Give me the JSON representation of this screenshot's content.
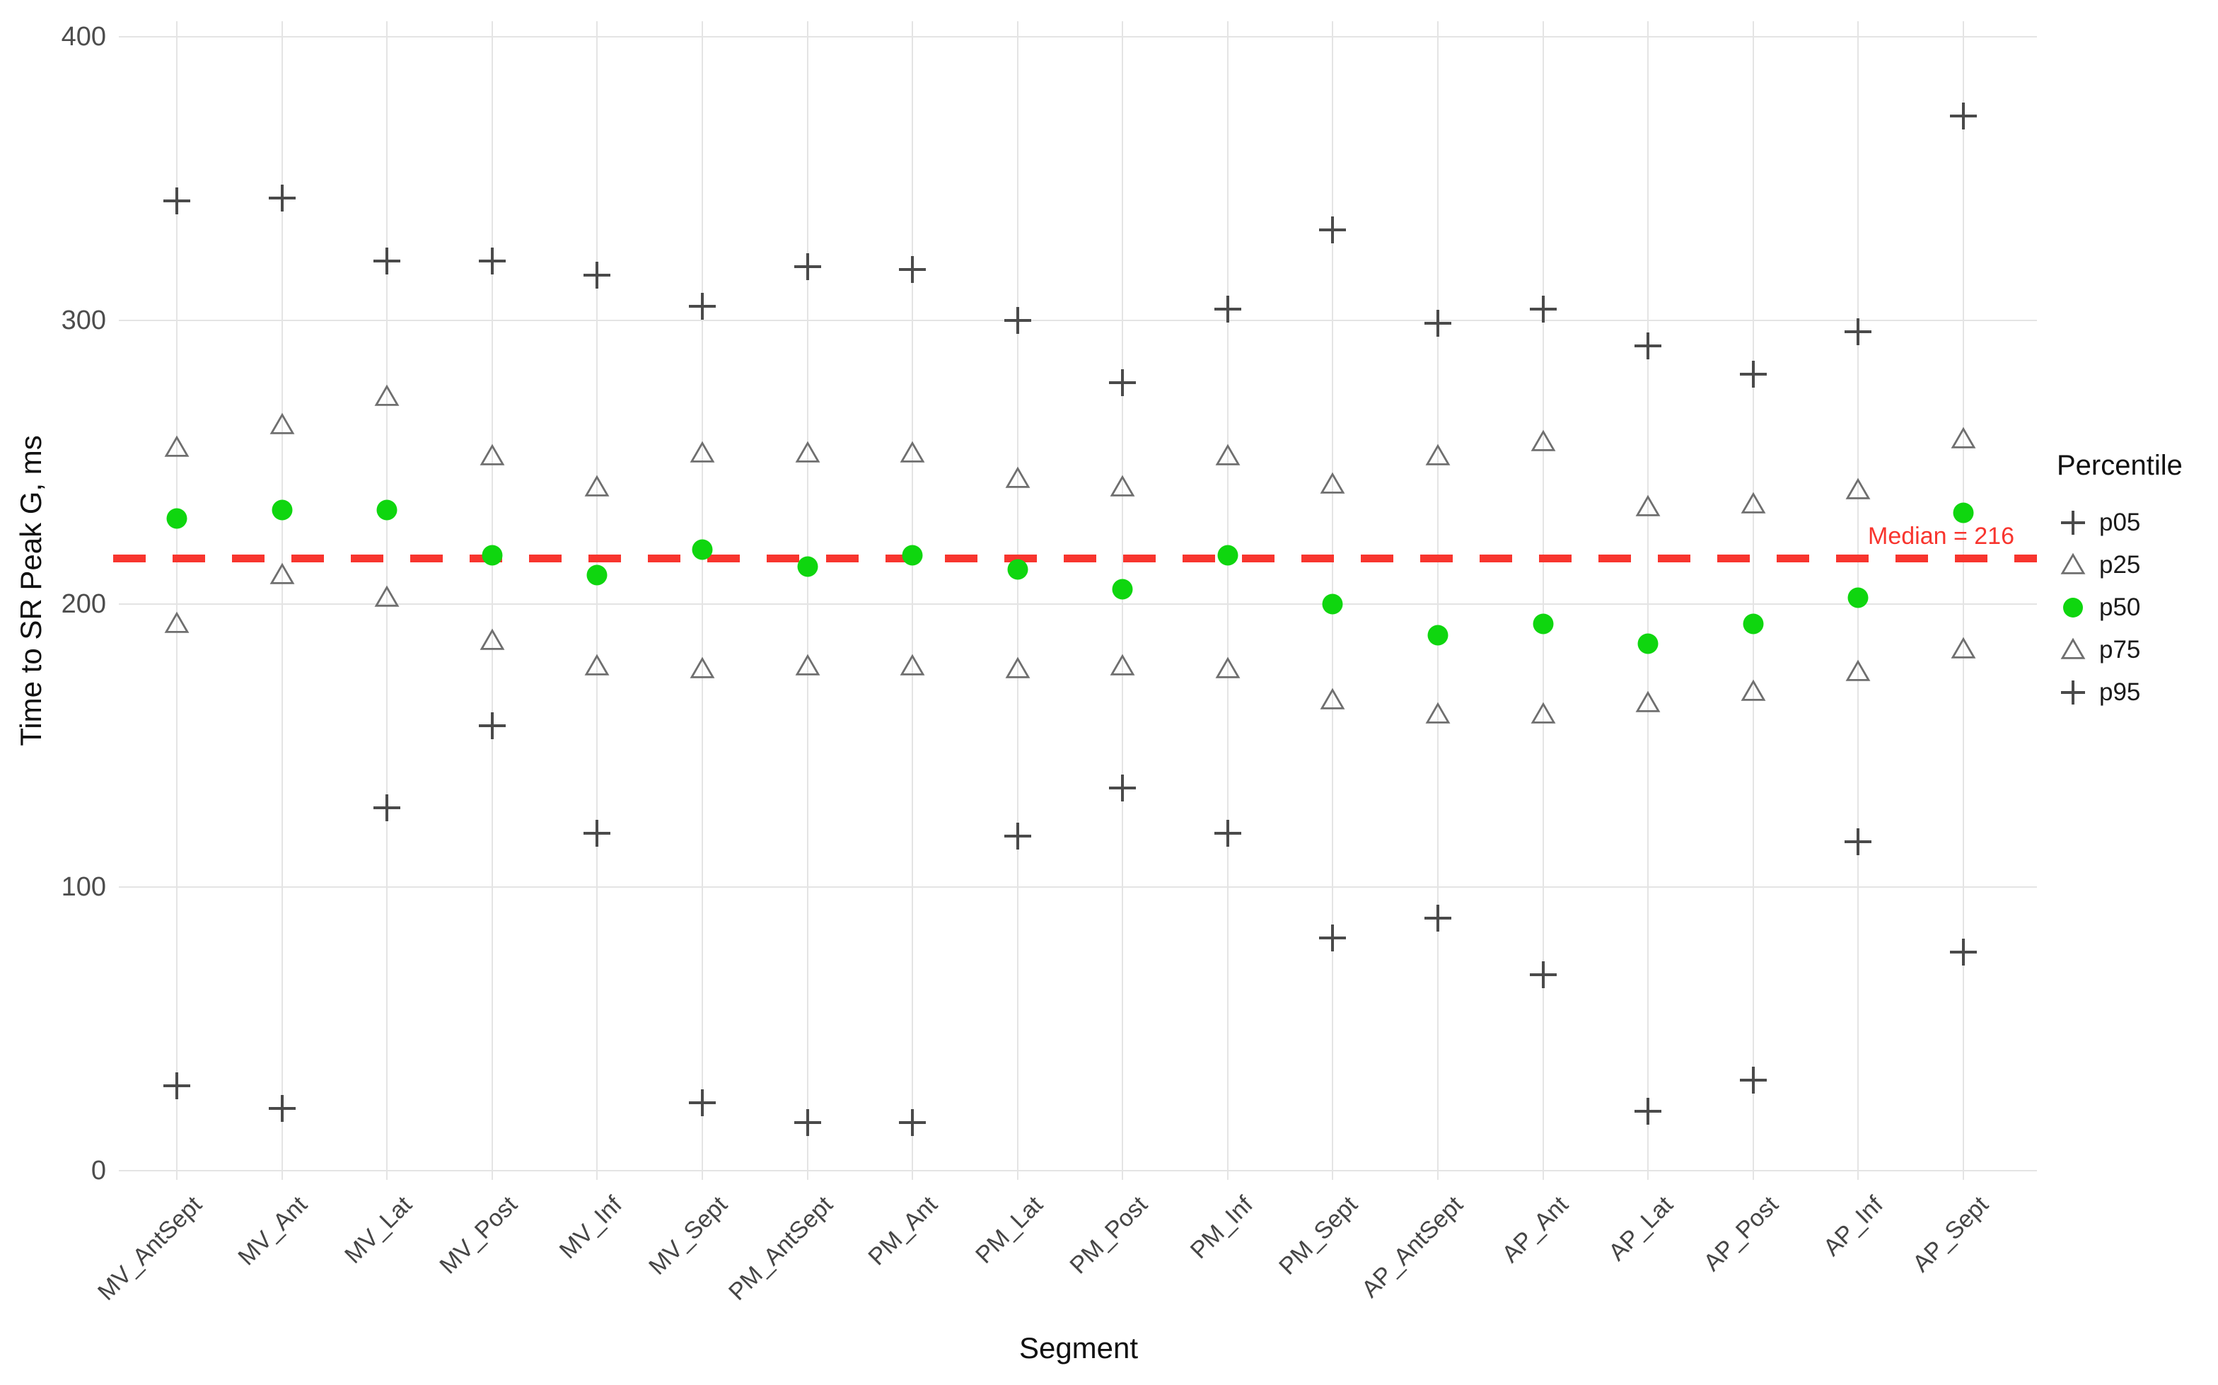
{
  "chart_data": {
    "type": "scatter",
    "title": "",
    "xlabel": "Segment",
    "ylabel": "Time to SR Peak G, ms",
    "ylim": [
      0,
      400
    ],
    "yticks": [
      0,
      100,
      200,
      300,
      400
    ],
    "grid": "major-only",
    "background": "#ffffff",
    "gridline_color": "#e4e4e4",
    "categories": [
      "MV_AntSept",
      "MV_Ant",
      "MV_Lat",
      "MV_Post",
      "MV_Inf",
      "MV_Sept",
      "PM_AntSept",
      "PM_Ant",
      "PM_Lat",
      "PM_Post",
      "PM_Inf",
      "PM_Sept",
      "AP_AntSept",
      "AP_Ant",
      "AP_Lat",
      "AP_Post",
      "AP_Inf",
      "AP_Sept"
    ],
    "series": [
      {
        "name": "p05",
        "marker": "plus",
        "color": "#4a4a4a",
        "values": [
          30,
          22,
          128,
          157,
          119,
          24,
          17,
          17,
          118,
          135,
          119,
          82,
          89,
          69,
          21,
          32,
          116,
          77
        ]
      },
      {
        "name": "p25",
        "marker": "triangle-open",
        "color": "#6f6f6f",
        "values": [
          193,
          210,
          202,
          187,
          178,
          177,
          178,
          178,
          177,
          178,
          177,
          166,
          161,
          161,
          165,
          169,
          176,
          184
        ]
      },
      {
        "name": "p50",
        "marker": "circle",
        "color": "#0fd60f",
        "values": [
          230,
          233,
          233,
          217,
          210,
          219,
          213,
          217,
          212,
          205,
          217,
          200,
          189,
          193,
          186,
          193,
          202,
          232
        ]
      },
      {
        "name": "p75",
        "marker": "triangle-open",
        "color": "#6f6f6f",
        "values": [
          255,
          263,
          273,
          252,
          241,
          253,
          253,
          253,
          244,
          241,
          252,
          242,
          252,
          257,
          234,
          235,
          240,
          258
        ]
      },
      {
        "name": "p95",
        "marker": "plus",
        "color": "#4a4a4a",
        "values": [
          342,
          343,
          321,
          321,
          316,
          305,
          319,
          318,
          300,
          278,
          304,
          332,
          299,
          304,
          291,
          281,
          296,
          372
        ]
      }
    ],
    "median_line": {
      "value": 216,
      "label": "Median = 216",
      "color": "#f8352e",
      "style": "dashed"
    },
    "legend": {
      "title": "Percentile",
      "position": "right",
      "entries": [
        {
          "label": "p05",
          "marker": "plus"
        },
        {
          "label": "p25",
          "marker": "triangle-open"
        },
        {
          "label": "p50",
          "marker": "circle"
        },
        {
          "label": "p75",
          "marker": "triangle-open"
        },
        {
          "label": "p95",
          "marker": "plus"
        }
      ]
    }
  }
}
